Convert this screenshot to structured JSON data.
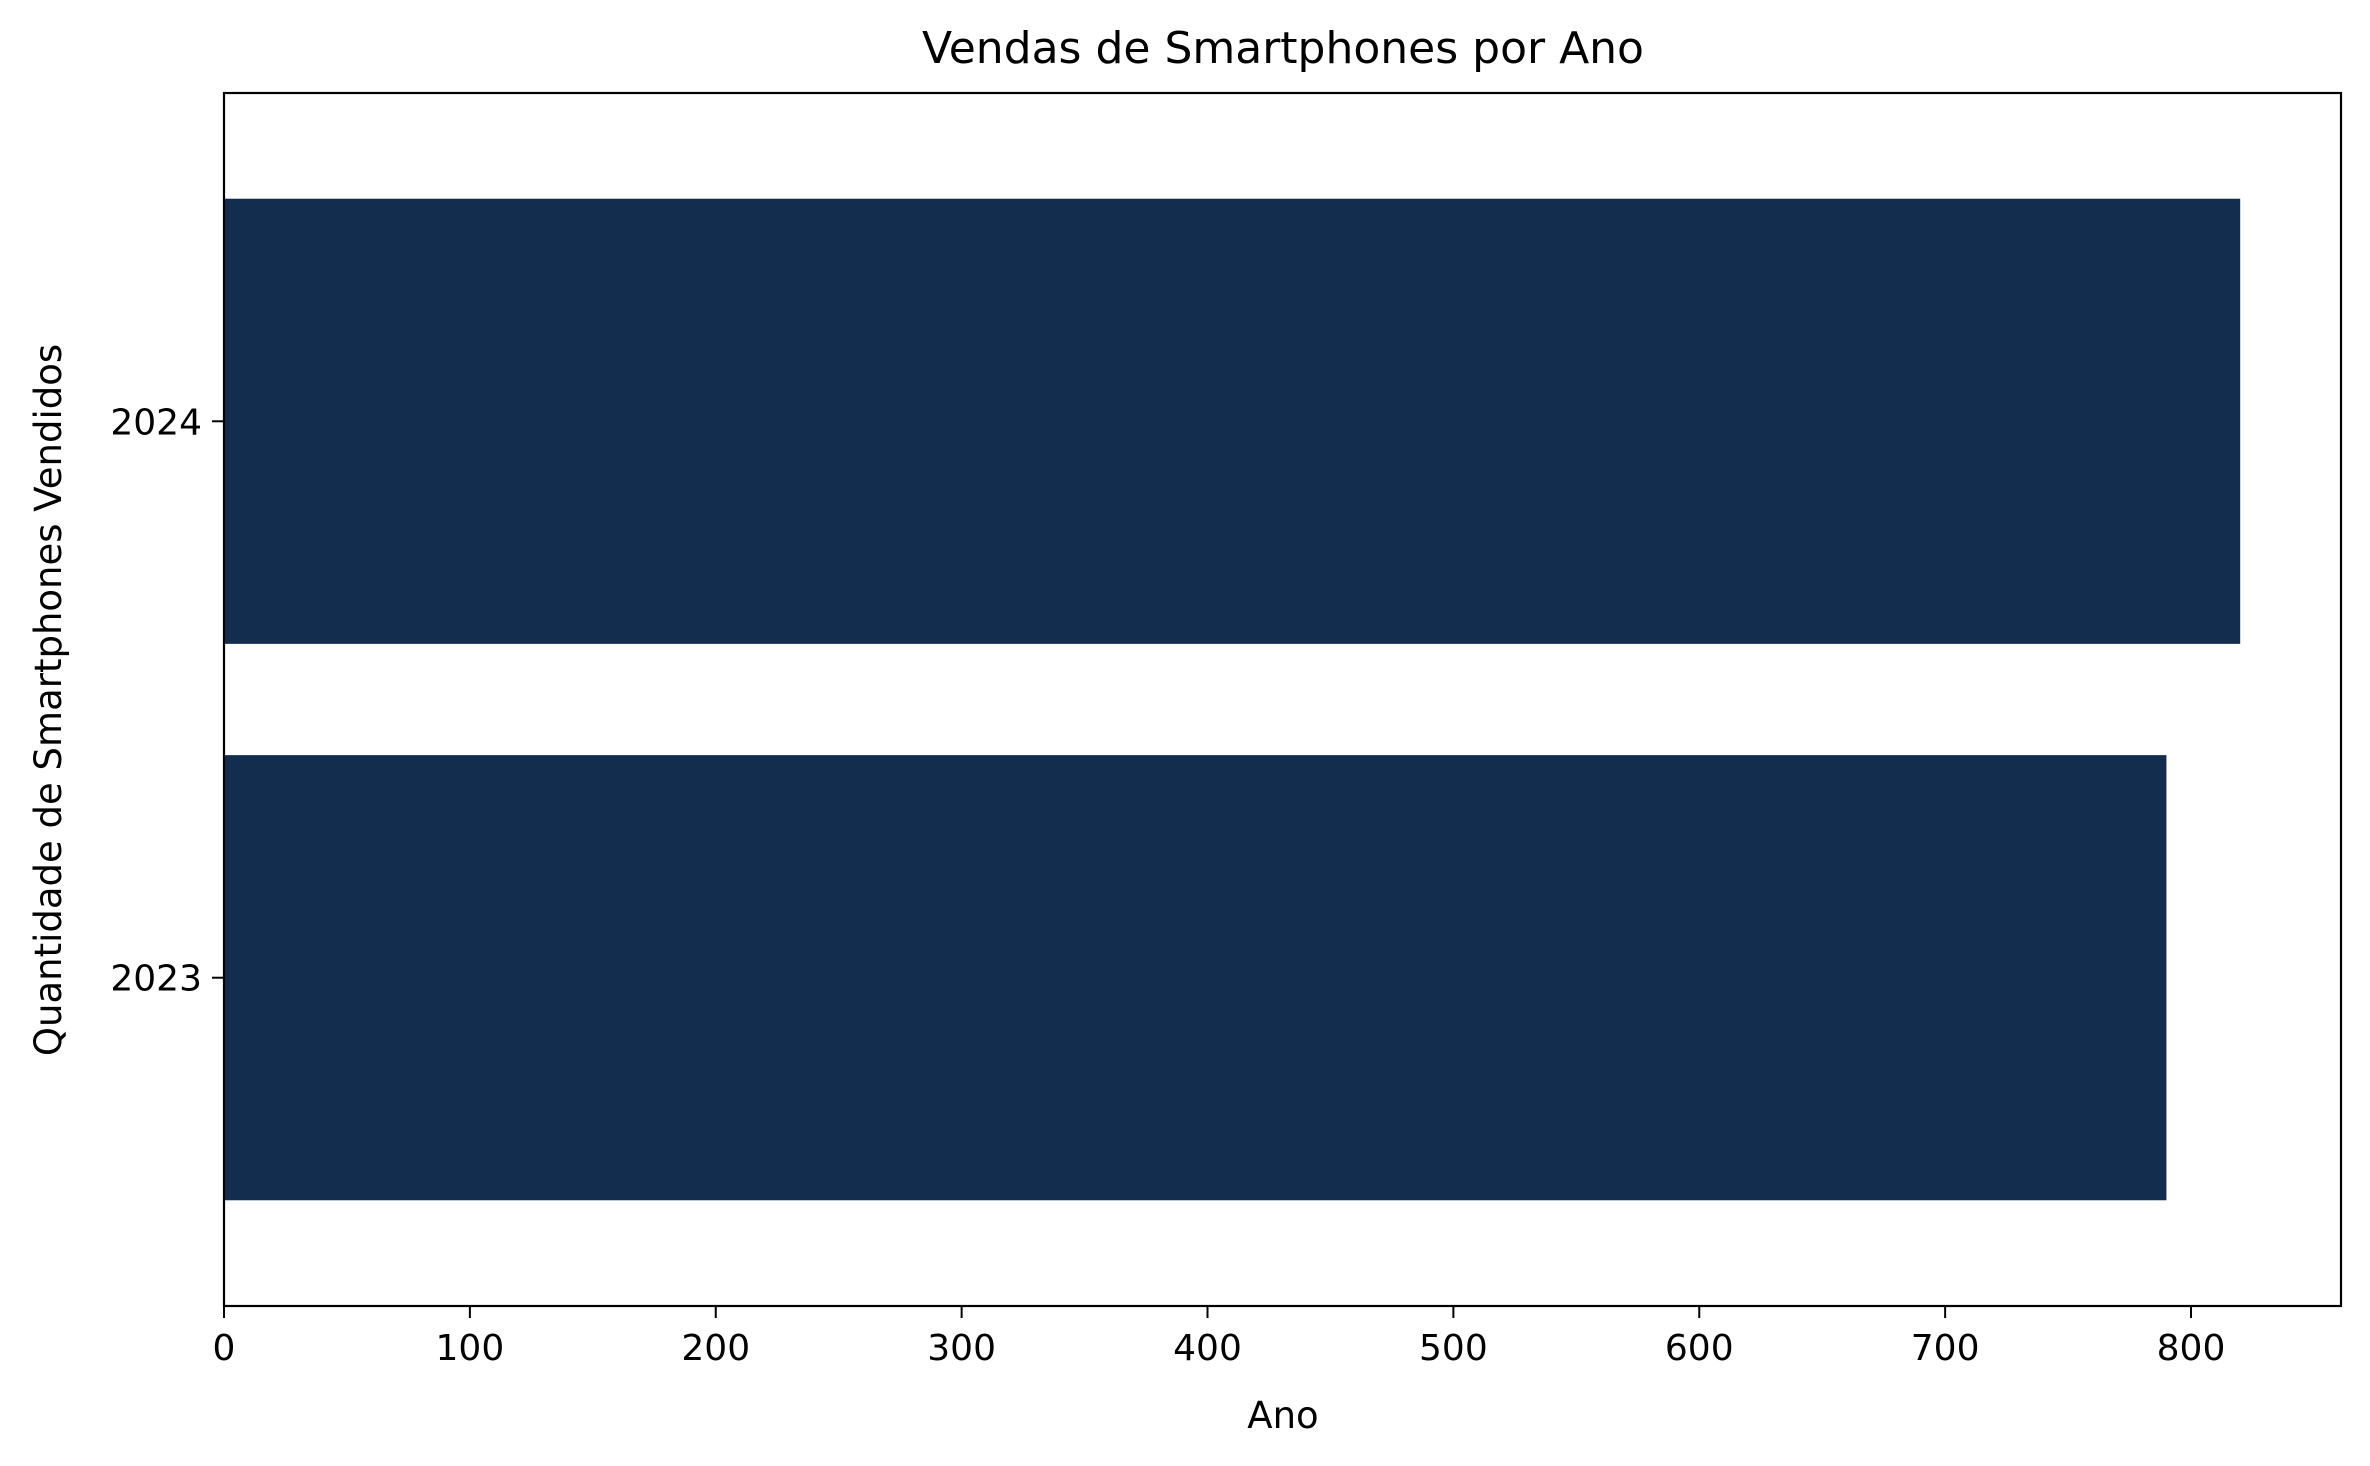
{
  "chart_data": {
    "type": "bar",
    "orientation": "horizontal",
    "title": "Vendas de Smartphones por Ano",
    "xlabel": "Ano",
    "ylabel": "Quantidade de Smartphones Vendidos",
    "categories": [
      "2023",
      "2024"
    ],
    "values": [
      790,
      820
    ],
    "xlim": [
      0,
      861
    ],
    "xticks": [
      0,
      100,
      200,
      300,
      400,
      500,
      600,
      700,
      800
    ],
    "bar_color": "#122d4d",
    "grid": false,
    "legend": "none"
  }
}
